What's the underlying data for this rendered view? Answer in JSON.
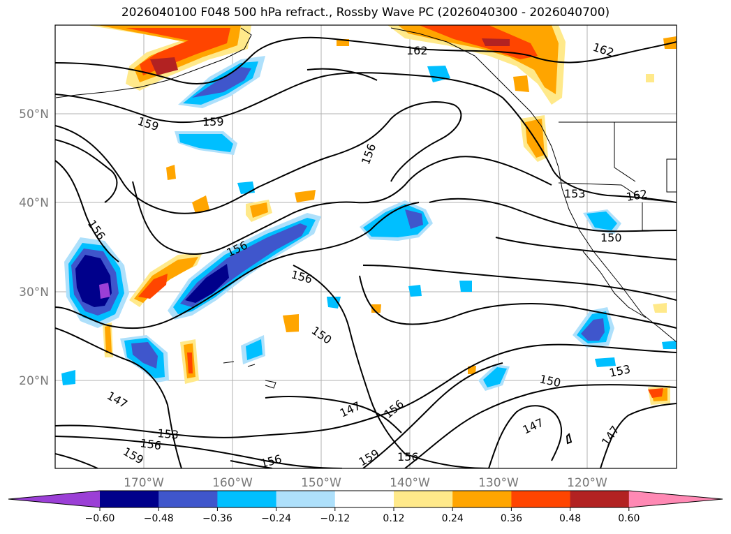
{
  "title": "2026040100 F048 500 hPa refract., Rossby Wave PC (2026040300 - 2026040700)",
  "map": {
    "lat_labels": [
      "50°N",
      "40°N",
      "30°N",
      "20°N"
    ],
    "lon_labels": [
      "170°W",
      "160°W",
      "150°W",
      "140°W",
      "130°W",
      "120°W"
    ],
    "contour_labels": [
      "162",
      "162",
      "159",
      "159",
      "156",
      "156",
      "156",
      "156",
      "153",
      "162",
      "150",
      "150",
      "147",
      "153",
      "156",
      "159",
      "147",
      "156",
      "156",
      "153",
      "150",
      "147",
      "147",
      "159"
    ]
  },
  "colorbar": {
    "ticks": [
      "−0.60",
      "−0.48",
      "−0.36",
      "−0.24",
      "−0.12",
      "0.12",
      "0.24",
      "0.36",
      "0.48",
      "0.60"
    ],
    "colors": [
      "#9b3fd6",
      "#00008b",
      "#3f56cc",
      "#00bfff",
      "#aee0fb",
      "#ffffff",
      "#ffe98a",
      "#ffa500",
      "#ff4500",
      "#b22222",
      "#ff89b4"
    ]
  }
}
